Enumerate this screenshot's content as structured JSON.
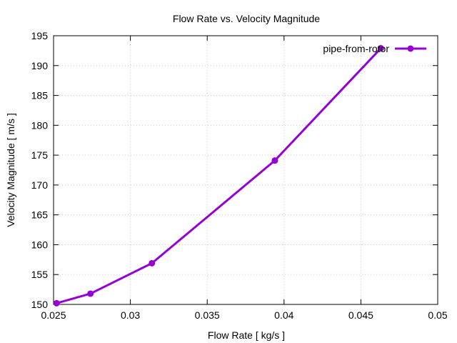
{
  "chart_data": {
    "type": "line",
    "title": "Flow Rate vs. Velocity Magnitude",
    "xlabel": "Flow Rate [ kg/s ]",
    "ylabel": "Velocity Magnitude [ m/s ]",
    "xlim": [
      0.025,
      0.05
    ],
    "ylim": [
      150,
      195
    ],
    "xticks": [
      "0.025",
      "0.03",
      "0.035",
      "0.04",
      "0.045",
      "0.05"
    ],
    "yticks": [
      "150",
      "155",
      "160",
      "165",
      "170",
      "175",
      "180",
      "185",
      "190",
      "195"
    ],
    "grid": true,
    "legend_position": "top-right",
    "series": [
      {
        "name": "pipe-from-rotor",
        "color": "#9400d3",
        "x": [
          0.0252,
          0.0274,
          0.0314,
          0.0394,
          0.0463
        ],
        "y": [
          150.2,
          151.8,
          156.9,
          174.1,
          192.9
        ]
      }
    ]
  }
}
